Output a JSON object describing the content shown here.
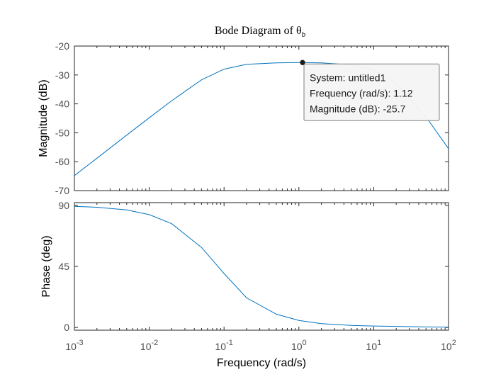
{
  "chart_data": {
    "type": "line",
    "title": "Bode Diagram of θ",
    "title_subscript": "b",
    "xlabel": "Frequency  (rad/s)",
    "xscale": "log",
    "xlim": [
      0.001,
      100
    ],
    "x_ticks": [
      {
        "base": "10",
        "exp": "-3"
      },
      {
        "base": "10",
        "exp": "-2"
      },
      {
        "base": "10",
        "exp": "-1"
      },
      {
        "base": "10",
        "exp": "0"
      },
      {
        "base": "10",
        "exp": "1"
      },
      {
        "base": "10",
        "exp": "2"
      }
    ],
    "line_color": "#0072bd",
    "axis_color": "#262626",
    "grid": false,
    "panels": [
      {
        "name": "magnitude",
        "ylabel": "Magnitude (dB)",
        "ylim": [
          -70,
          -20
        ],
        "y_ticks": [
          "-20",
          "-30",
          "-40",
          "-50",
          "-60",
          "-70"
        ],
        "x": [
          0.001,
          0.002,
          0.005,
          0.01,
          0.02,
          0.05,
          0.1,
          0.2,
          0.5,
          1,
          1.12,
          2,
          5,
          10,
          20,
          50,
          100
        ],
        "y": [
          -64.8,
          -58.8,
          -50.8,
          -44.8,
          -38.9,
          -31.7,
          -28,
          -26.3,
          -25.8,
          -25.7,
          -25.7,
          -25.8,
          -26.5,
          -28.3,
          -33,
          -44.5,
          -55.5
        ]
      },
      {
        "name": "phase",
        "ylabel": "Phase (deg)",
        "ylim": [
          -2,
          92
        ],
        "y_ticks": [
          "90",
          "45",
          "0"
        ],
        "x": [
          0.001,
          0.002,
          0.005,
          0.01,
          0.02,
          0.05,
          0.1,
          0.2,
          0.5,
          1,
          2,
          5,
          10,
          20,
          50,
          100
        ],
        "y": [
          89.3,
          88.6,
          86.6,
          83.2,
          76.5,
          59,
          39.8,
          21.8,
          9.8,
          5.2,
          2.8,
          1.5,
          1.1,
          0.8,
          0.4,
          0.2
        ]
      }
    ],
    "datatip": {
      "panel": "magnitude",
      "x": 1.12,
      "y": -25.7,
      "lines": [
        "System: untitled1",
        "Frequency (rad/s): 1.12",
        "Magnitude (dB): -25.7"
      ]
    }
  }
}
